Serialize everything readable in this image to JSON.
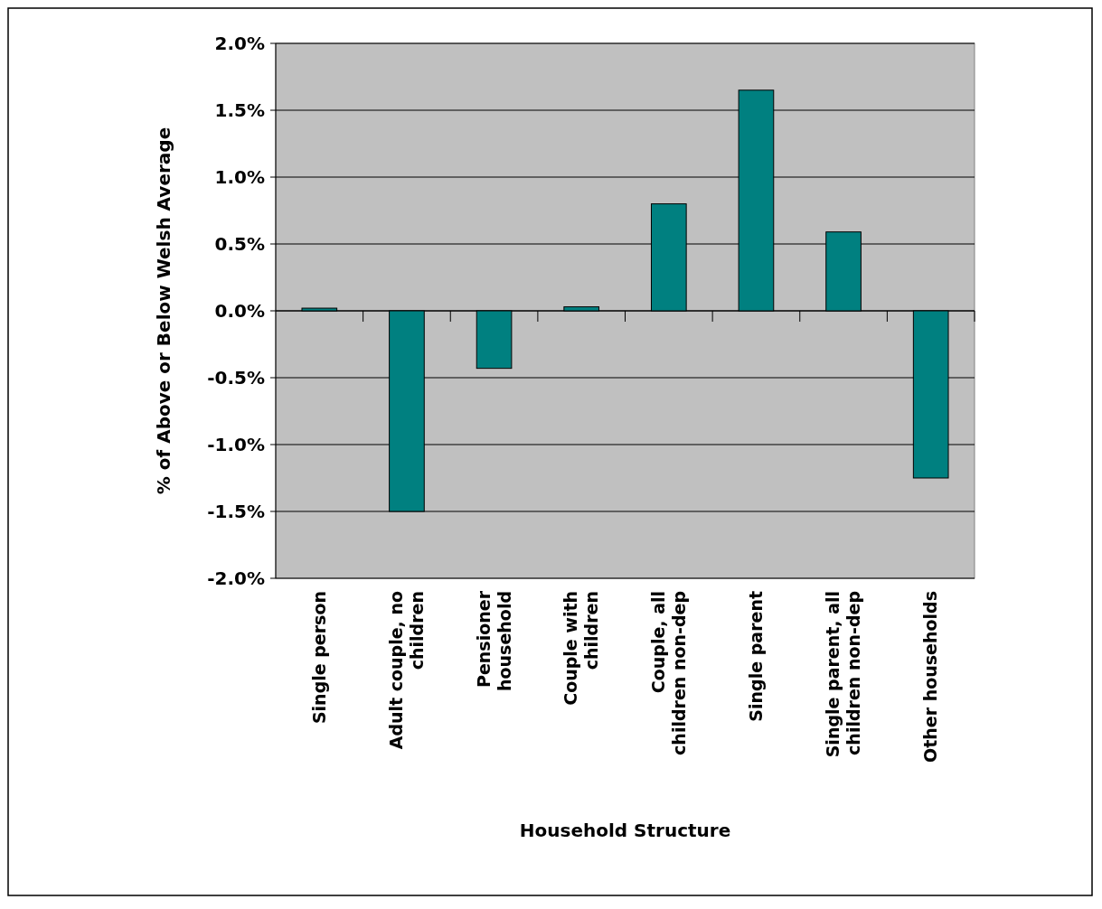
{
  "chart_data": {
    "type": "bar",
    "xlabel": "Household Structure",
    "ylabel": "% of Above or Below Welsh Average",
    "categories": [
      "Single person",
      "Adult couple, no children",
      "Pensioner household",
      "Couple with children",
      "Couple, all children non-dep",
      "Single parent",
      "Single parent, all children non-dep",
      "Other households"
    ],
    "values": [
      0.02,
      -1.5,
      -0.43,
      0.03,
      0.8,
      1.65,
      0.59,
      -1.25
    ],
    "color": "#008080",
    "ylim": [
      -2,
      2
    ],
    "yticks": [
      {
        "value": -2,
        "label": "-2.0%"
      },
      {
        "value": -1.5,
        "label": "-1.5%"
      },
      {
        "value": -1,
        "label": "-1.0%"
      },
      {
        "value": -0.5,
        "label": "-0.5%"
      },
      {
        "value": 0,
        "label": "0.0%"
      },
      {
        "value": 0.5,
        "label": "0.5%"
      },
      {
        "value": 1,
        "label": "1.0%"
      },
      {
        "value": 1.5,
        "label": "1.5%"
      },
      {
        "value": 2,
        "label": "2.0%"
      }
    ],
    "grid": "y"
  }
}
